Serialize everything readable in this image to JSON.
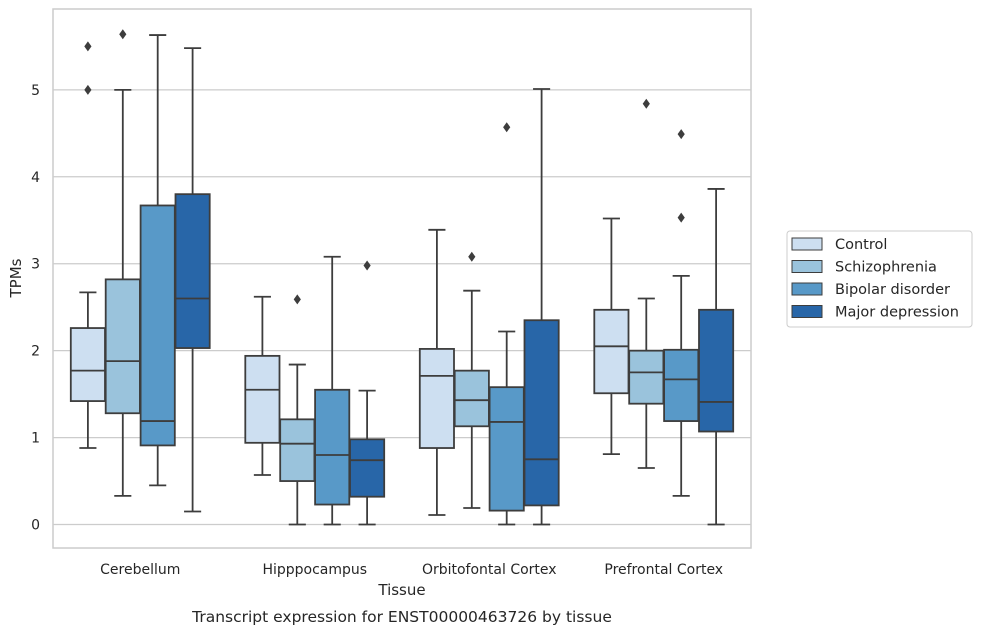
{
  "caption": "Transcript expression for ENST00000463726 by tissue",
  "chart_data": {
    "type": "box",
    "xlabel": "Tissue",
    "ylabel": "TPMs",
    "ylim": [
      -0.27,
      5.93
    ],
    "yticks": [
      0,
      1,
      2,
      3,
      4,
      5
    ],
    "grid": "horizontal",
    "legend_position": "right",
    "categories": [
      "Cerebellum",
      "Hipppocampus",
      "Orbitofontal Cortex",
      "Prefrontal Cortex"
    ],
    "series": [
      {
        "name": "Control",
        "color": "#cddff1",
        "boxes": [
          {
            "min": 0.88,
            "q1": 1.42,
            "median": 1.77,
            "q3": 2.26,
            "max": 2.67,
            "outliers": [
              5.0,
              5.5
            ]
          },
          {
            "min": 0.57,
            "q1": 0.94,
            "median": 1.55,
            "q3": 1.94,
            "max": 2.62,
            "outliers": []
          },
          {
            "min": 0.11,
            "q1": 0.88,
            "median": 1.71,
            "q3": 2.02,
            "max": 3.39,
            "outliers": []
          },
          {
            "min": 0.81,
            "q1": 1.51,
            "median": 2.05,
            "q3": 2.47,
            "max": 3.52,
            "outliers": []
          }
        ]
      },
      {
        "name": "Schizophrenia",
        "color": "#9ac3dc",
        "boxes": [
          {
            "min": 0.33,
            "q1": 1.28,
            "median": 1.88,
            "q3": 2.82,
            "max": 5.0,
            "outliers": [
              5.64
            ]
          },
          {
            "min": 0.0,
            "q1": 0.5,
            "median": 0.93,
            "q3": 1.21,
            "max": 1.84,
            "outliers": [
              2.59
            ]
          },
          {
            "min": 0.19,
            "q1": 1.13,
            "median": 1.43,
            "q3": 1.77,
            "max": 2.69,
            "outliers": [
              3.08
            ]
          },
          {
            "min": 0.65,
            "q1": 1.39,
            "median": 1.75,
            "q3": 2.0,
            "max": 2.6,
            "outliers": [
              4.84
            ]
          }
        ]
      },
      {
        "name": "Bipolar disorder",
        "color": "#5899c8",
        "boxes": [
          {
            "min": 0.45,
            "q1": 0.91,
            "median": 1.19,
            "q3": 3.67,
            "max": 5.63,
            "outliers": []
          },
          {
            "min": 0.0,
            "q1": 0.23,
            "median": 0.8,
            "q3": 1.55,
            "max": 3.08,
            "outliers": []
          },
          {
            "min": 0.0,
            "q1": 0.16,
            "median": 1.18,
            "q3": 1.58,
            "max": 2.22,
            "outliers": [
              4.57
            ]
          },
          {
            "min": 0.33,
            "q1": 1.19,
            "median": 1.67,
            "q3": 2.01,
            "max": 2.86,
            "outliers": [
              3.53,
              4.49
            ]
          }
        ]
      },
      {
        "name": "Major depression",
        "color": "#2866a8",
        "boxes": [
          {
            "min": 0.15,
            "q1": 2.03,
            "median": 2.6,
            "q3": 3.8,
            "max": 5.48,
            "outliers": []
          },
          {
            "min": 0.0,
            "q1": 0.32,
            "median": 0.74,
            "q3": 0.98,
            "max": 1.54,
            "outliers": [
              2.98
            ]
          },
          {
            "min": 0.0,
            "q1": 0.22,
            "median": 0.75,
            "q3": 2.35,
            "max": 5.01,
            "outliers": []
          },
          {
            "min": 0.0,
            "q1": 1.07,
            "median": 1.41,
            "q3": 2.47,
            "max": 3.86,
            "outliers": []
          }
        ]
      }
    ]
  }
}
